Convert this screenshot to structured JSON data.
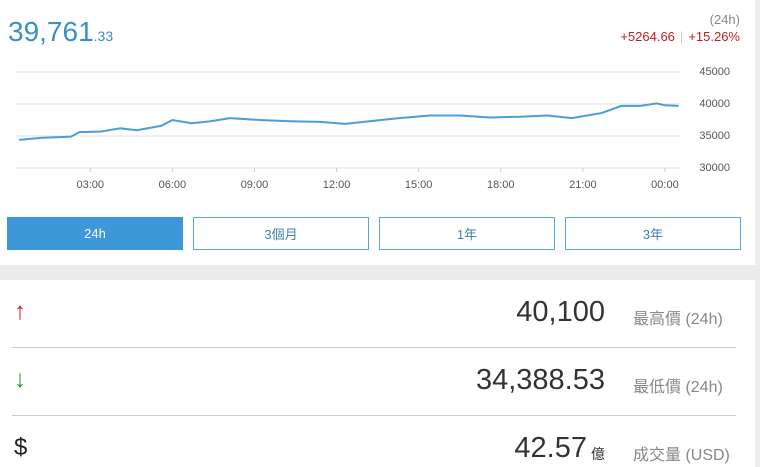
{
  "header": {
    "price": "39,761",
    "price_decimals": ".33",
    "period": "(24h)",
    "change": "+5264.66",
    "change_pct": "+15.26%"
  },
  "chart_data": {
    "type": "line",
    "color": "#4b9fd5",
    "grid": true,
    "x": [
      0.4,
      1.2,
      2.3,
      2.6,
      3.4,
      4.1,
      4.7,
      5.6,
      6.0,
      6.7,
      7.4,
      8.1,
      9.2,
      10.3,
      11.4,
      12.3,
      13.2,
      14.3,
      15.4,
      16.5,
      17.6,
      18.7,
      19.7,
      20.6,
      21.7,
      22.4,
      23.1,
      23.7,
      24.0,
      24.5
    ],
    "values": [
      34400,
      34700,
      34900,
      35600,
      35700,
      36200,
      35900,
      36600,
      37500,
      37000,
      37300,
      37800,
      37500,
      37300,
      37200,
      36900,
      37300,
      37800,
      38200,
      38200,
      37900,
      38000,
      38200,
      37800,
      38600,
      39700,
      39700,
      40100,
      39800,
      39700
    ],
    "xlim": [
      0.25,
      24.55
    ],
    "xticks": [
      {
        "value": 3,
        "label": "03:00"
      },
      {
        "value": 6,
        "label": "06:00"
      },
      {
        "value": 9,
        "label": "09:00"
      },
      {
        "value": 12,
        "label": "12:00"
      },
      {
        "value": 15,
        "label": "15:00"
      },
      {
        "value": 18,
        "label": "18:00"
      },
      {
        "value": 21,
        "label": "21:00"
      },
      {
        "value": 24,
        "label": "00:00"
      }
    ],
    "ylim": [
      30000,
      45000
    ],
    "yticks": [
      30000,
      35000,
      40000,
      45000
    ]
  },
  "buttons": [
    "24h",
    "3個月",
    "1年",
    "3年"
  ],
  "stats": [
    {
      "icon": "↑",
      "value": "40,100",
      "label": "最高價 (24h)"
    },
    {
      "icon": "↓",
      "value": "34,388.53",
      "label": "最低價 (24h)"
    },
    {
      "icon": "$",
      "value": "42.57",
      "unit": "億",
      "label": "成交量 (USD)"
    }
  ]
}
